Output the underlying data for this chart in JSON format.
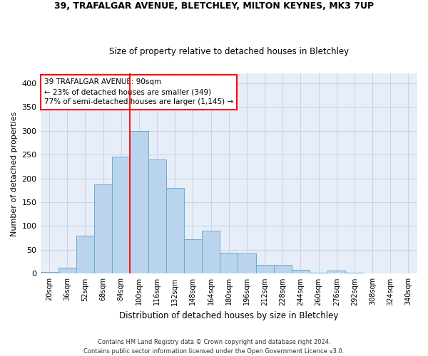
{
  "title1": "39, TRAFALGAR AVENUE, BLETCHLEY, MILTON KEYNES, MK3 7UP",
  "title2": "Size of property relative to detached houses in Bletchley",
  "xlabel": "Distribution of detached houses by size in Bletchley",
  "ylabel": "Number of detached properties",
  "bar_color": "#bad4ed",
  "bar_edge_color": "#6aaad4",
  "categories": [
    "20sqm",
    "36sqm",
    "52sqm",
    "68sqm",
    "84sqm",
    "100sqm",
    "116sqm",
    "132sqm",
    "148sqm",
    "164sqm",
    "180sqm",
    "196sqm",
    "212sqm",
    "228sqm",
    "244sqm",
    "260sqm",
    "276sqm",
    "292sqm",
    "308sqm",
    "324sqm",
    "340sqm"
  ],
  "values": [
    3,
    12,
    80,
    188,
    245,
    300,
    240,
    180,
    73,
    90,
    44,
    42,
    19,
    19,
    8,
    2,
    6,
    2,
    1,
    0,
    1
  ],
  "ylim": [
    0,
    420
  ],
  "yticks": [
    0,
    50,
    100,
    150,
    200,
    250,
    300,
    350,
    400
  ],
  "red_line_x": 4.5,
  "annotation_line1": "39 TRAFALGAR AVENUE: 90sqm",
  "annotation_line2": "← 23% of detached houses are smaller (349)",
  "annotation_line3": "77% of semi-detached houses are larger (1,145) →",
  "annotation_box_color": "white",
  "annotation_box_edge": "red",
  "footer1": "Contains HM Land Registry data © Crown copyright and database right 2024.",
  "footer2": "Contains public sector information licensed under the Open Government Licence v3.0.",
  "grid_color": "#c8d4e8",
  "background_color": "#e8eef8",
  "title_fontsize": 9,
  "subtitle_fontsize": 8.5
}
